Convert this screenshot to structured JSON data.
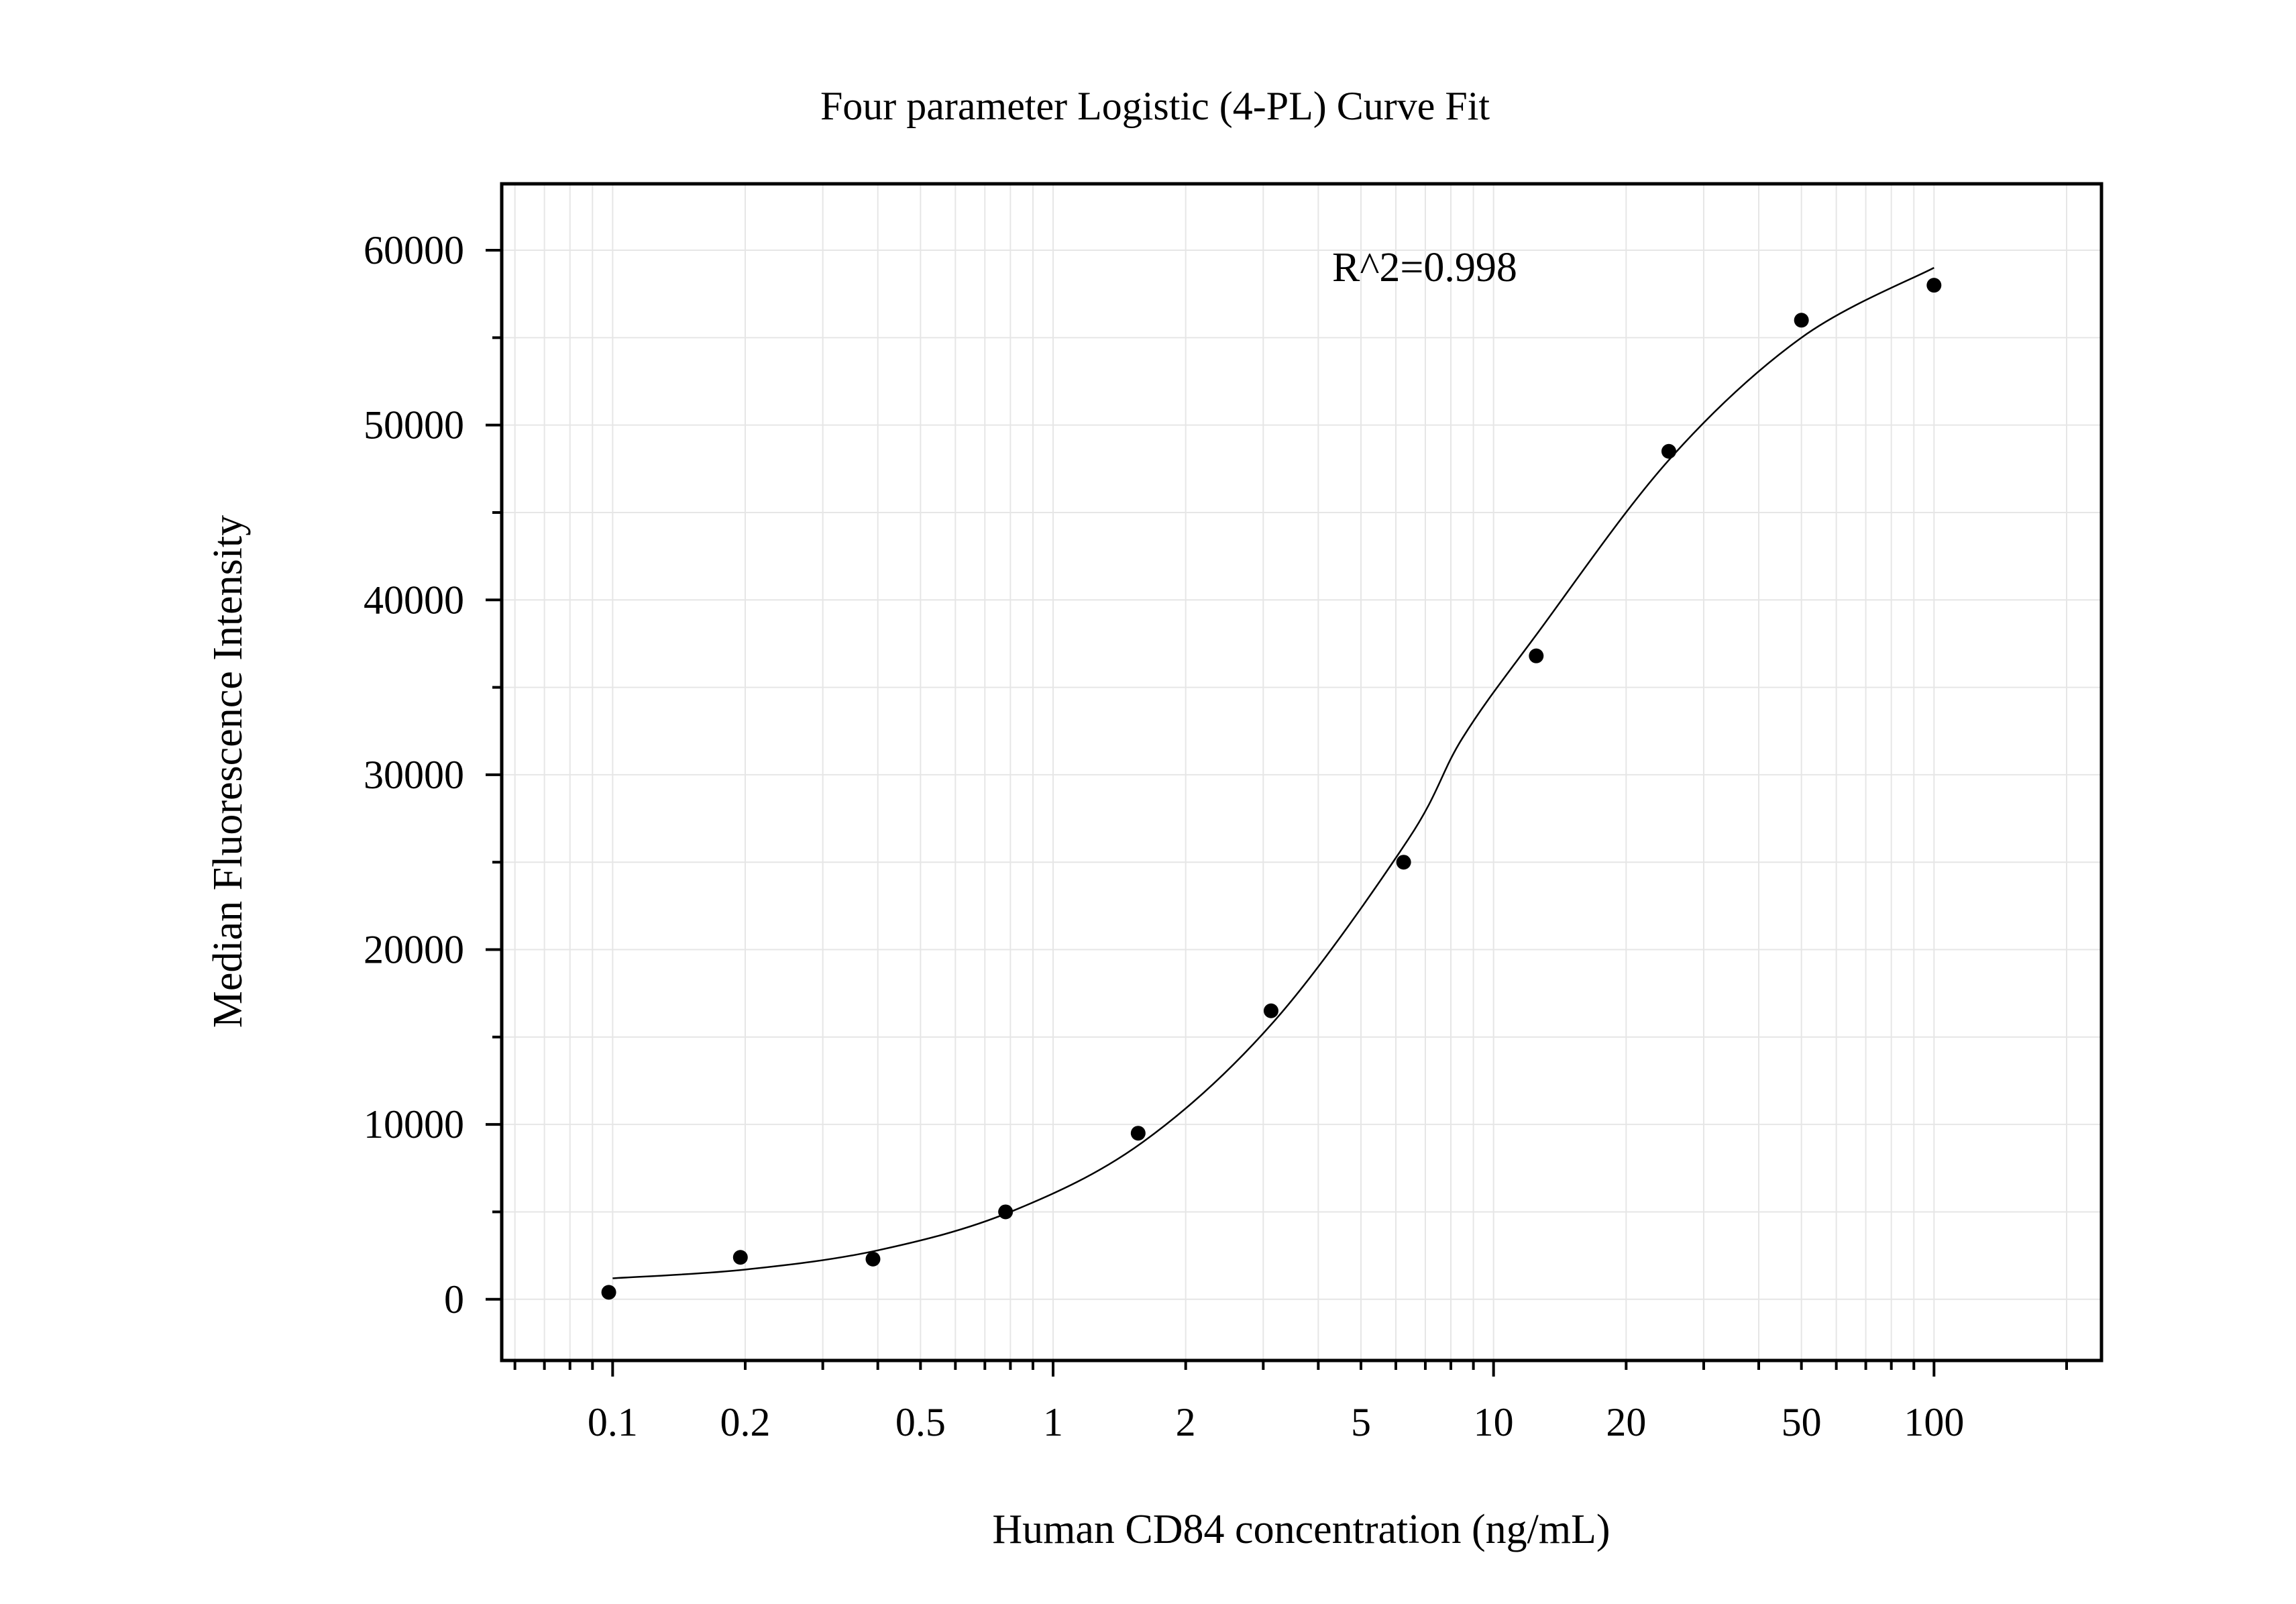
{
  "chart_data": {
    "type": "scatter",
    "title": "Four parameter Logistic (4-PL) Curve Fit",
    "xlabel": "Human CD84 concentration (ng/mL)",
    "ylabel": "Median Fluorescence Intensity",
    "x_scale": "log",
    "xlim": [
      0.056,
      240
    ],
    "ylim": [
      -3500,
      63800
    ],
    "grid": true,
    "legend": "none",
    "x_ticks": [
      0.1,
      0.2,
      0.5,
      1,
      2,
      5,
      10,
      20,
      50,
      100
    ],
    "x_tick_labels": [
      "0.1",
      "0.2",
      "0.5",
      "1",
      "2",
      "5",
      "10",
      "20",
      "50",
      "100"
    ],
    "y_ticks": [
      0,
      10000,
      20000,
      30000,
      40000,
      50000,
      60000
    ],
    "y_tick_labels": [
      "0",
      "10000",
      "20000",
      "30000",
      "40000",
      "50000",
      "60000"
    ],
    "annotation": {
      "text": "R^2=0.998",
      "x": 4.3,
      "y": 59000
    },
    "points": {
      "x": [
        0.098,
        0.195,
        0.39,
        0.78,
        1.56,
        3.125,
        6.25,
        12.5,
        25,
        50,
        100
      ],
      "y": [
        400,
        2400,
        2300,
        5000,
        9500,
        16500,
        25000,
        36800,
        48500,
        56000,
        58000
      ]
    },
    "fit": {
      "model": "4PL",
      "x": [
        0.1,
        0.2,
        0.4,
        0.8,
        1.6,
        3.2,
        6.4,
        8.5,
        12.5,
        25,
        50,
        100
      ],
      "y": [
        1200,
        1700,
        2800,
        5000,
        9000,
        16000,
        26300,
        32100,
        38000,
        48000,
        55000,
        59000
      ]
    },
    "colors": {
      "points": "#000000",
      "fit": "#000000",
      "grid": "#e6e6e6",
      "frame": "#000000"
    }
  }
}
